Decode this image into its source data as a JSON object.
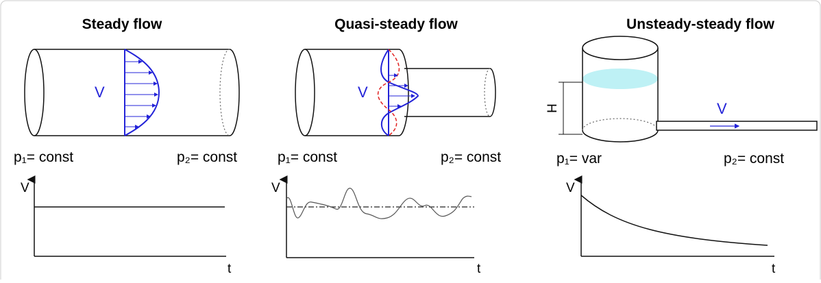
{
  "panels": [
    {
      "title": "Steady flow",
      "velocity_label": "V",
      "p1": "p₁= const",
      "p2": "p₂= const",
      "graph": {
        "y_label": "V",
        "x_label": "t"
      }
    },
    {
      "title": "Quasi-steady flow",
      "velocity_label": "V",
      "p1": "p₁= const",
      "p2": "p₂= const",
      "graph": {
        "y_label": "V",
        "x_label": "t"
      }
    },
    {
      "title": "Unsteady-steady flow",
      "velocity_label": "V",
      "height_label": "H",
      "p1": "p₁= var",
      "p2": "p₂= const",
      "graph": {
        "y_label": "V",
        "x_label": "t"
      }
    }
  ]
}
